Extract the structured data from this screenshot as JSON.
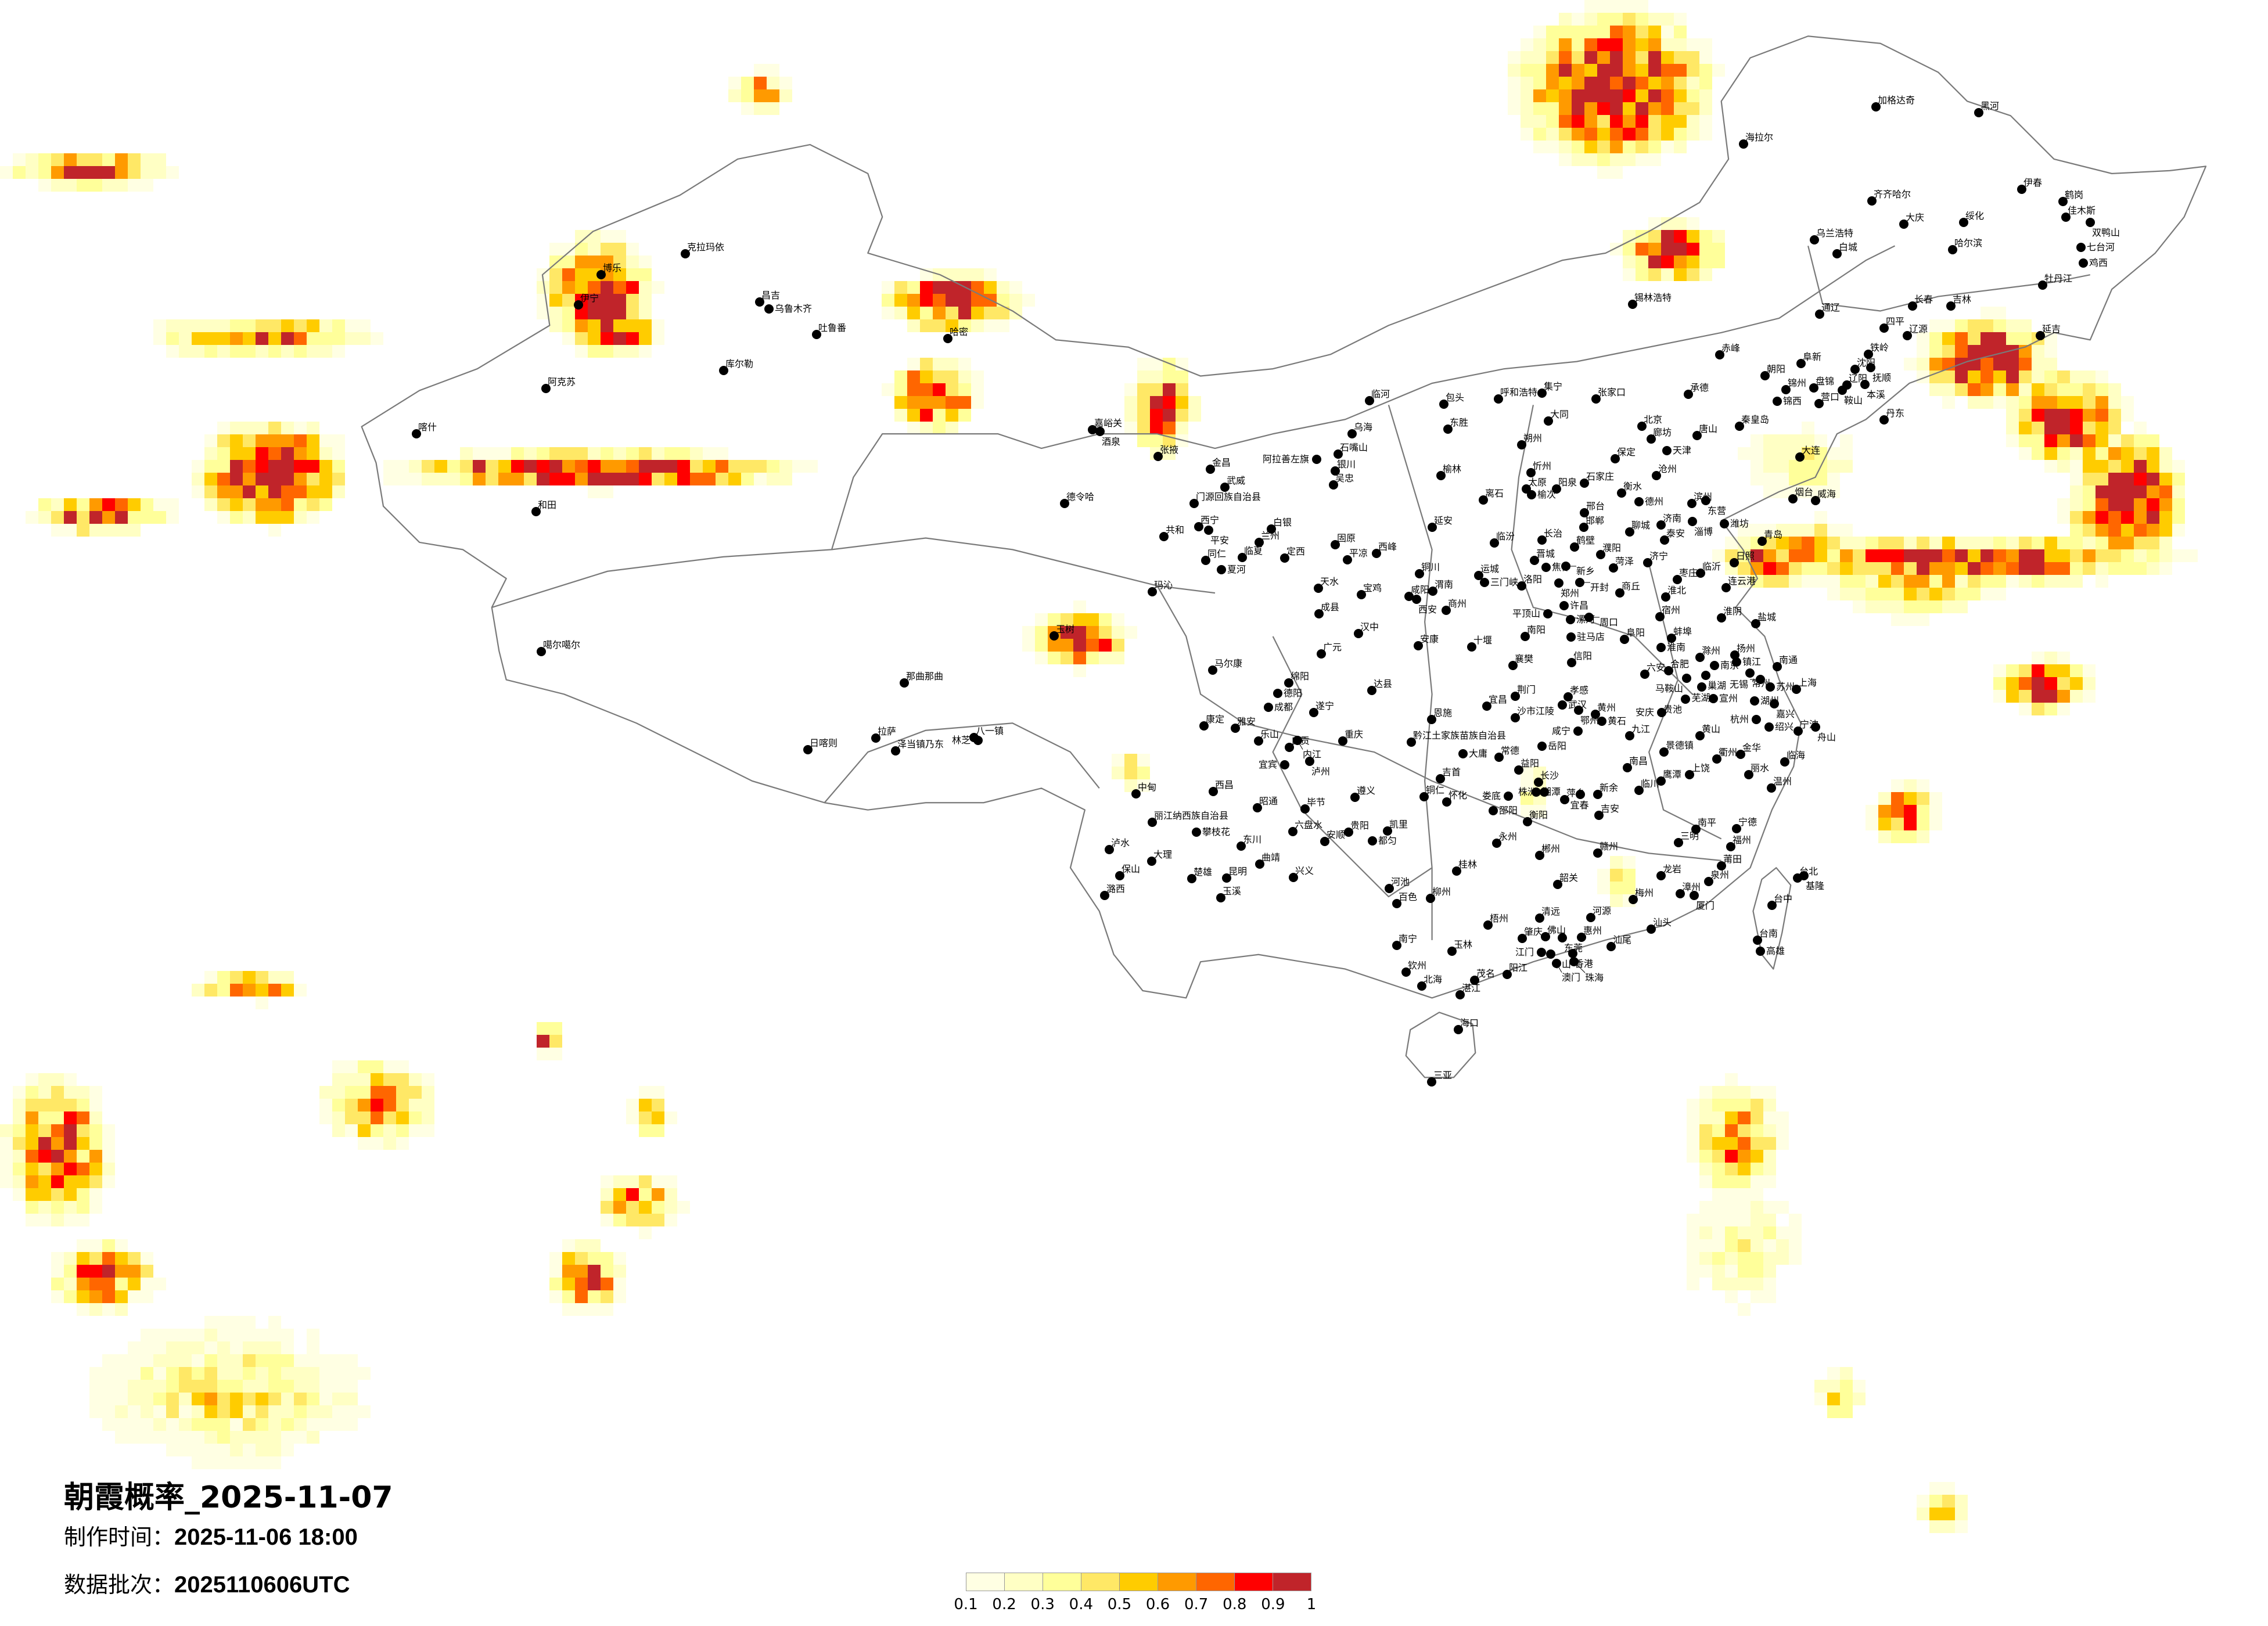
{
  "title": "朝霞概率_2025-11-07",
  "production_time_label": "制作时间：",
  "production_time": "2025-11-06 18:00",
  "batch_label": "数据批次：",
  "batch": "2025110606UTC",
  "legend": {
    "labels": [
      "0.1",
      "0.2",
      "0.3",
      "0.4",
      "0.5",
      "0.6",
      "0.7",
      "0.8",
      "0.9",
      "1"
    ],
    "colors": [
      "#FFFFE3",
      "#FFFFC4",
      "#FFFF9A",
      "#FFE866",
      "#FFCC00",
      "#FF9A00",
      "#FF6600",
      "#FF0000",
      "#C0242A"
    ]
  },
  "map": {
    "border_color": "#7a7a7a",
    "city_marker_color": "#000000",
    "cities": [
      "喀什",
      "克拉玛依",
      "博乐",
      "伊宁",
      "昌吉",
      "乌鲁木齐",
      "吐鲁番",
      "哈密",
      "库尔勒",
      "阿克苏",
      "和田",
      "噶尔噶尔",
      "那曲那曲",
      "拉萨",
      "泽当镇乃东",
      "日喀则",
      "八一镇",
      "林芝",
      "嘉峪关",
      "酒泉",
      "张掖",
      "金昌",
      "武威",
      "门源回族自治县",
      "德令哈",
      "西宁",
      "平安",
      "共和",
      "白银",
      "兰州",
      "临夏",
      "同仁",
      "夏河",
      "定西",
      "玛沁",
      "玉树",
      "临河",
      "包头",
      "乌海",
      "东胜",
      "石嘴山",
      "阿拉善左旗",
      "银川",
      "吴忠",
      "榆林",
      "离石",
      "延安",
      "固原",
      "平凉",
      "西峰",
      "天水",
      "宝鸡",
      "成县",
      "汉中",
      "铜川",
      "咸阳",
      "西安",
      "渭南",
      "商州",
      "运城",
      "三门峡",
      "临汾",
      "呼和浩特",
      "集宁",
      "张家口",
      "大同",
      "朔州",
      "忻州",
      "太原",
      "榆次",
      "阳泉",
      "石家庄",
      "北京",
      "廊坊",
      "天津",
      "唐山",
      "承德",
      "秦皇岛",
      "保定",
      "沧州",
      "衡水",
      "德州",
      "邢台",
      "邯郸",
      "长治",
      "鹤壁",
      "濮阳",
      "晋城",
      "焦作",
      "新乡",
      "洛阳",
      "郑州",
      "开封",
      "聊城",
      "济南",
      "泰安",
      "济宁",
      "菏泽",
      "滨州",
      "东营",
      "淄博",
      "潍坊",
      "烟台",
      "威海",
      "青岛",
      "日照",
      "临沂",
      "枣庄",
      "连云港",
      "商丘",
      "淮北",
      "宿州",
      "淮阴",
      "盐城",
      "许昌",
      "平顶山",
      "漯河",
      "周口",
      "大连",
      "丹东",
      "营口",
      "锦州",
      "盘锦",
      "锦西",
      "朝阳",
      "阜新",
      "赤峰",
      "沈阳",
      "抚顺",
      "铁岭",
      "辽阳",
      "鞍山",
      "本溪",
      "加格达奇",
      "黑河",
      "海拉尔",
      "齐齐哈尔",
      "伊春",
      "鹤岗",
      "佳木斯",
      "双鸭山",
      "大庆",
      "绥化",
      "乌兰浩特",
      "白城",
      "哈尔滨",
      "七台河",
      "鸡西",
      "牡丹江",
      "长春",
      "吉林",
      "通辽",
      "四平",
      "辽源",
      "延吉",
      "锡林浩特",
      "安康",
      "十堰",
      "广元",
      "南阳",
      "驻马店",
      "信阳",
      "襄樊",
      "马尔康",
      "绵阳",
      "德阳",
      "成都",
      "达县",
      "遂宁",
      "荆门",
      "宜昌",
      "孝感",
      "武汉",
      "鄂州",
      "黄州",
      "黄石",
      "沙市江陵",
      "恩施",
      "康定",
      "雅安",
      "乐山",
      "自贡",
      "内江",
      "重庆",
      "咸宁",
      "黔江土家族苗族自治县",
      "岳阳",
      "大庸",
      "常德",
      "宜宾",
      "泸州",
      "益阳",
      "吉首",
      "长沙",
      "湘潭",
      "株洲",
      "娄底",
      "萍乡",
      "宜春",
      "新余",
      "吉安",
      "铜仁",
      "怀化",
      "邵阳",
      "衡阳",
      "中甸",
      "西昌",
      "遵义",
      "昭通",
      "毕节",
      "丽江纳西族自治县",
      "攀枝花",
      "六盘水",
      "贵阳",
      "安顺",
      "凯里",
      "都匀",
      "泸水",
      "东川",
      "永州",
      "郴州",
      "赣州",
      "大理",
      "曲靖",
      "保山",
      "楚雄",
      "昆明",
      "兴义",
      "桂林",
      "河池",
      "韶关",
      "玉溪",
      "柳州",
      "潞西",
      "南昌",
      "鹰潭",
      "上饶",
      "临川",
      "丽水",
      "温州",
      "南平",
      "三明",
      "宁德",
      "福州",
      "莆田",
      "泉州",
      "龙岩",
      "漳州",
      "厦门",
      "梅州",
      "汕头",
      "汕尾",
      "河源",
      "清远",
      "肇庆",
      "佛山",
      "东莞",
      "惠州",
      "江门",
      "中山",
      "澳门",
      "香港",
      "珠海",
      "梧州",
      "南宁",
      "玉林",
      "钦州",
      "北海",
      "茂名",
      "阳江",
      "湛江",
      "海口",
      "台北",
      "基隆",
      "台中",
      "台南",
      "高雄",
      "百色",
      "三亚",
      "阜阳",
      "蚌埠",
      "淮南",
      "滁州",
      "扬州",
      "镇江",
      "南京",
      "六安",
      "合肥",
      "巢湖",
      "马鞍山",
      "芜湖",
      "常州",
      "无锡",
      "南通",
      "苏州",
      "上海",
      "宣州",
      "湖州",
      "嘉兴",
      "贵池",
      "安庆",
      "杭州",
      "绍兴",
      "宁波",
      "舟山",
      "九江",
      "黄山",
      "景德镇",
      "衢州",
      "金华",
      "临海"
    ]
  }
}
